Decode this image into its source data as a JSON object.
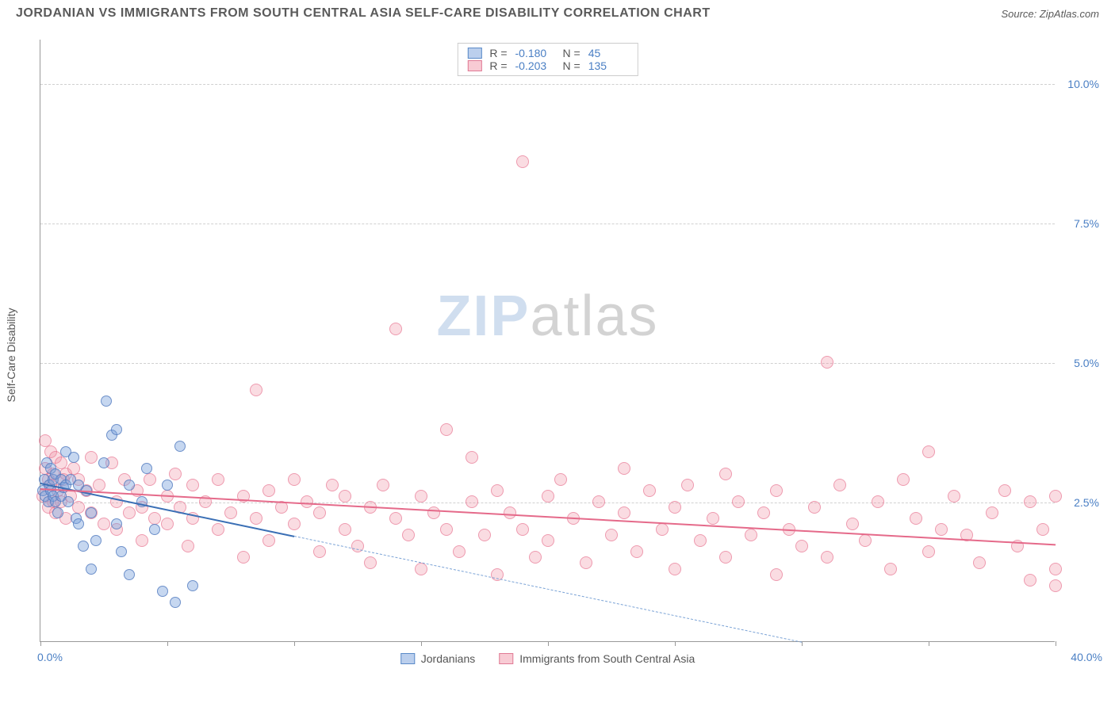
{
  "header": {
    "title": "JORDANIAN VS IMMIGRANTS FROM SOUTH CENTRAL ASIA SELF-CARE DISABILITY CORRELATION CHART",
    "source": "Source: ZipAtlas.com"
  },
  "chart": {
    "type": "scatter",
    "y_axis_label": "Self-Care Disability",
    "x_origin_label": "0.0%",
    "x_max_label": "40.0%",
    "xlim": [
      0,
      40
    ],
    "ylim": [
      0,
      10.8
    ],
    "y_gridlines": [
      2.5,
      5.0,
      7.5,
      10.0
    ],
    "y_tick_labels": [
      "2.5%",
      "5.0%",
      "7.5%",
      "10.0%"
    ],
    "x_ticks": [
      0,
      5,
      10,
      15,
      20,
      25,
      30,
      35,
      40
    ],
    "background_color": "#ffffff",
    "grid_color": "#d0d0d0",
    "axis_color": "#999999",
    "tick_label_color": "#4a7fc4",
    "watermark": {
      "part1": "ZIP",
      "part2": "atlas"
    },
    "legend_top": {
      "rows": [
        {
          "swatch": "blue",
          "r_label": "R =",
          "r_value": "-0.180",
          "n_label": "N =",
          "n_value": "45"
        },
        {
          "swatch": "pink",
          "r_label": "R =",
          "r_value": "-0.203",
          "n_label": "N =",
          "n_value": "135"
        }
      ]
    },
    "legend_bottom": {
      "items": [
        {
          "swatch": "blue",
          "label": "Jordanians"
        },
        {
          "swatch": "pink",
          "label": "Immigrants from South Central Asia"
        }
      ]
    },
    "series": {
      "blue": {
        "color_fill": "rgba(120,160,220,0.42)",
        "color_stroke": "rgba(80,120,190,0.75)",
        "marker_size": 14,
        "trend": {
          "x1": 0,
          "y1": 2.85,
          "x2": 10,
          "y2": 1.9,
          "extrap_x2": 30,
          "extrap_y2": 0
        },
        "points": [
          [
            0.1,
            2.7
          ],
          [
            0.15,
            2.9
          ],
          [
            0.2,
            2.6
          ],
          [
            0.25,
            3.2
          ],
          [
            0.3,
            2.5
          ],
          [
            0.35,
            2.8
          ],
          [
            0.4,
            2.7
          ],
          [
            0.4,
            3.1
          ],
          [
            0.5,
            2.6
          ],
          [
            0.5,
            2.9
          ],
          [
            0.6,
            3.0
          ],
          [
            0.6,
            2.5
          ],
          [
            0.7,
            2.3
          ],
          [
            0.8,
            2.9
          ],
          [
            0.8,
            2.6
          ],
          [
            0.9,
            2.75
          ],
          [
            1.0,
            2.8
          ],
          [
            1.0,
            3.4
          ],
          [
            1.1,
            2.5
          ],
          [
            1.2,
            2.9
          ],
          [
            1.3,
            3.3
          ],
          [
            1.4,
            2.2
          ],
          [
            1.5,
            2.1
          ],
          [
            1.5,
            2.8
          ],
          [
            1.7,
            1.7
          ],
          [
            1.8,
            2.7
          ],
          [
            2.0,
            2.3
          ],
          [
            2.0,
            1.3
          ],
          [
            2.2,
            1.8
          ],
          [
            2.5,
            3.2
          ],
          [
            2.6,
            4.3
          ],
          [
            2.8,
            3.7
          ],
          [
            3.0,
            3.8
          ],
          [
            3.0,
            2.1
          ],
          [
            3.2,
            1.6
          ],
          [
            3.5,
            1.2
          ],
          [
            3.5,
            2.8
          ],
          [
            4.0,
            2.5
          ],
          [
            4.2,
            3.1
          ],
          [
            4.5,
            2.0
          ],
          [
            4.8,
            0.9
          ],
          [
            5.0,
            2.8
          ],
          [
            5.3,
            0.7
          ],
          [
            5.5,
            3.5
          ],
          [
            6.0,
            1.0
          ]
        ]
      },
      "pink": {
        "color_fill": "rgba(240,140,160,0.3)",
        "color_stroke": "rgba(230,110,140,0.6)",
        "marker_size": 16,
        "trend": {
          "x1": 0,
          "y1": 2.75,
          "x2": 40,
          "y2": 1.75
        },
        "points": [
          [
            0.1,
            2.6
          ],
          [
            0.2,
            3.1
          ],
          [
            0.2,
            3.6
          ],
          [
            0.3,
            2.4
          ],
          [
            0.3,
            2.9
          ],
          [
            0.4,
            2.8
          ],
          [
            0.4,
            3.4
          ],
          [
            0.5,
            2.5
          ],
          [
            0.5,
            3.0
          ],
          [
            0.6,
            2.3
          ],
          [
            0.6,
            3.3
          ],
          [
            0.7,
            2.7
          ],
          [
            0.8,
            2.5
          ],
          [
            0.8,
            3.2
          ],
          [
            0.9,
            2.9
          ],
          [
            1.0,
            2.2
          ],
          [
            1.0,
            3.0
          ],
          [
            1.2,
            2.6
          ],
          [
            1.3,
            3.1
          ],
          [
            1.5,
            2.4
          ],
          [
            1.5,
            2.9
          ],
          [
            1.8,
            2.7
          ],
          [
            2.0,
            2.3
          ],
          [
            2.0,
            3.3
          ],
          [
            2.3,
            2.8
          ],
          [
            2.5,
            2.1
          ],
          [
            2.8,
            3.2
          ],
          [
            3.0,
            2.5
          ],
          [
            3.0,
            2.0
          ],
          [
            3.3,
            2.9
          ],
          [
            3.5,
            2.3
          ],
          [
            3.8,
            2.7
          ],
          [
            4.0,
            2.4
          ],
          [
            4.0,
            1.8
          ],
          [
            4.3,
            2.9
          ],
          [
            4.5,
            2.2
          ],
          [
            5.0,
            2.6
          ],
          [
            5.0,
            2.1
          ],
          [
            5.3,
            3.0
          ],
          [
            5.5,
            2.4
          ],
          [
            5.8,
            1.7
          ],
          [
            6.0,
            2.8
          ],
          [
            6.0,
            2.2
          ],
          [
            6.5,
            2.5
          ],
          [
            7.0,
            2.0
          ],
          [
            7.0,
            2.9
          ],
          [
            7.5,
            2.3
          ],
          [
            8.0,
            2.6
          ],
          [
            8.0,
            1.5
          ],
          [
            8.5,
            4.5
          ],
          [
            8.5,
            2.2
          ],
          [
            9.0,
            2.7
          ],
          [
            9.0,
            1.8
          ],
          [
            9.5,
            2.4
          ],
          [
            10.0,
            2.1
          ],
          [
            10.0,
            2.9
          ],
          [
            10.5,
            2.5
          ],
          [
            11.0,
            1.6
          ],
          [
            11.0,
            2.3
          ],
          [
            11.5,
            2.8
          ],
          [
            12.0,
            2.0
          ],
          [
            12.0,
            2.6
          ],
          [
            12.5,
            1.7
          ],
          [
            13.0,
            2.4
          ],
          [
            13.0,
            1.4
          ],
          [
            13.5,
            2.8
          ],
          [
            14.0,
            5.6
          ],
          [
            14.0,
            2.2
          ],
          [
            14.5,
            1.9
          ],
          [
            15.0,
            2.6
          ],
          [
            15.0,
            1.3
          ],
          [
            15.5,
            2.3
          ],
          [
            16.0,
            3.8
          ],
          [
            16.0,
            2.0
          ],
          [
            16.5,
            1.6
          ],
          [
            17.0,
            2.5
          ],
          [
            17.0,
            3.3
          ],
          [
            17.5,
            1.9
          ],
          [
            18.0,
            2.7
          ],
          [
            18.0,
            1.2
          ],
          [
            18.5,
            2.3
          ],
          [
            19.0,
            8.6
          ],
          [
            19.0,
            2.0
          ],
          [
            19.5,
            1.5
          ],
          [
            20.0,
            2.6
          ],
          [
            20.0,
            1.8
          ],
          [
            20.5,
            2.9
          ],
          [
            21.0,
            2.2
          ],
          [
            21.5,
            1.4
          ],
          [
            22.0,
            2.5
          ],
          [
            22.5,
            1.9
          ],
          [
            23.0,
            2.3
          ],
          [
            23.0,
            3.1
          ],
          [
            23.5,
            1.6
          ],
          [
            24.0,
            2.7
          ],
          [
            24.5,
            2.0
          ],
          [
            25.0,
            1.3
          ],
          [
            25.0,
            2.4
          ],
          [
            25.5,
            2.8
          ],
          [
            26.0,
            1.8
          ],
          [
            26.5,
            2.2
          ],
          [
            27.0,
            1.5
          ],
          [
            27.0,
            3.0
          ],
          [
            27.5,
            2.5
          ],
          [
            28.0,
            1.9
          ],
          [
            28.5,
            2.3
          ],
          [
            29.0,
            1.2
          ],
          [
            29.0,
            2.7
          ],
          [
            29.5,
            2.0
          ],
          [
            30.0,
            1.7
          ],
          [
            30.5,
            2.4
          ],
          [
            31.0,
            5.0
          ],
          [
            31.0,
            1.5
          ],
          [
            31.5,
            2.8
          ],
          [
            32.0,
            2.1
          ],
          [
            32.5,
            1.8
          ],
          [
            33.0,
            2.5
          ],
          [
            33.5,
            1.3
          ],
          [
            34.0,
            2.9
          ],
          [
            34.5,
            2.2
          ],
          [
            35.0,
            1.6
          ],
          [
            35.0,
            3.4
          ],
          [
            35.5,
            2.0
          ],
          [
            36.0,
            2.6
          ],
          [
            36.5,
            1.9
          ],
          [
            37.0,
            1.4
          ],
          [
            37.5,
            2.3
          ],
          [
            38.0,
            2.7
          ],
          [
            38.5,
            1.7
          ],
          [
            39.0,
            1.1
          ],
          [
            39.0,
            2.5
          ],
          [
            39.5,
            2.0
          ],
          [
            40.0,
            2.6
          ],
          [
            40.0,
            1.3
          ],
          [
            40.0,
            1.0
          ]
        ]
      }
    }
  }
}
